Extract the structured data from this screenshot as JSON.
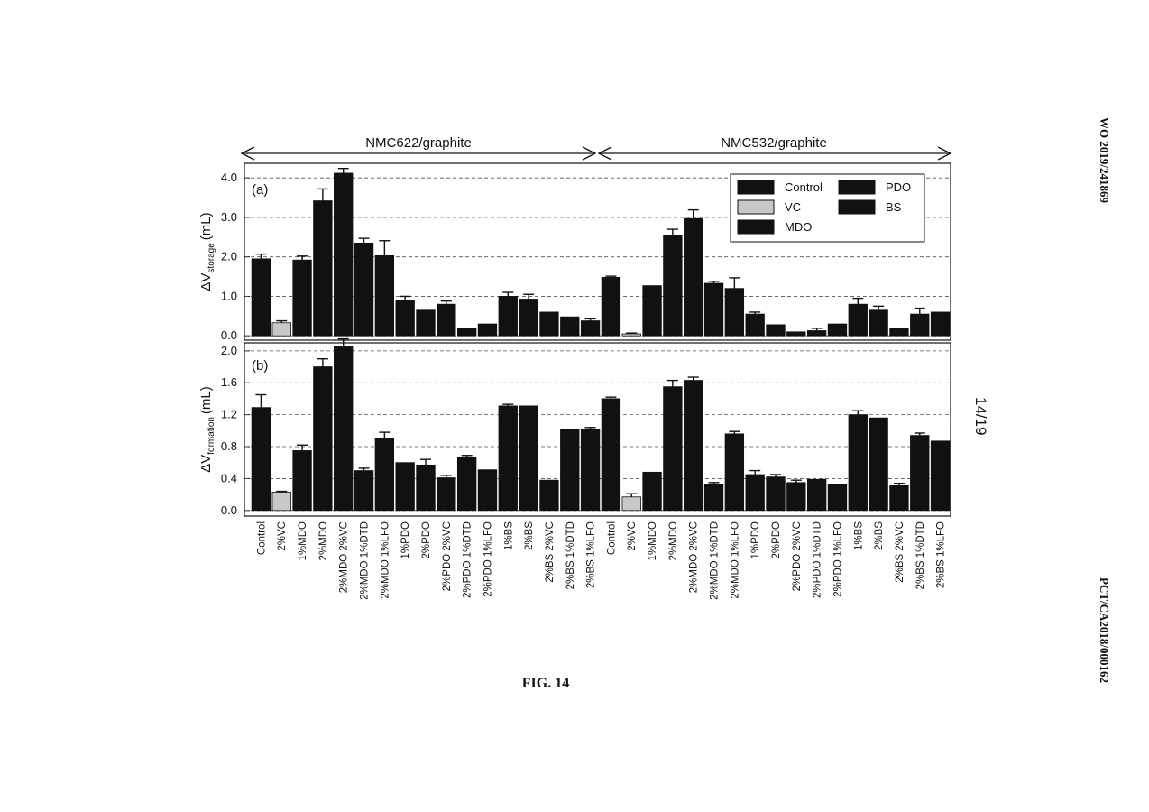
{
  "page": {
    "publication": "WO 2019/241869",
    "figure": "FIG. 14",
    "sheet": "14/19",
    "application": "PCT/CA2018/000162"
  },
  "groups": [
    "NMC622/graphite",
    "NMC532/graphite"
  ],
  "chart_data": [
    {
      "type": "bar",
      "label": "(a)",
      "y_label": {
        "main": "ΔV",
        "sub": "storage",
        "unit": "(mL)"
      },
      "values": [
        1.95,
        0.33,
        1.92,
        3.42,
        4.12,
        2.35,
        2.03,
        0.9,
        0.65,
        0.8,
        0.18,
        0.3,
        1.0,
        0.93,
        0.6,
        0.48,
        0.38,
        1.48,
        0.05,
        1.27,
        2.55,
        2.97,
        1.33,
        1.2,
        0.55,
        0.28,
        0.1,
        0.13,
        0.3,
        0.8,
        0.65,
        0.2,
        0.55,
        0.6
      ],
      "errors": [
        0.12,
        0.05,
        0.1,
        0.3,
        0.12,
        0.12,
        0.38,
        0.1,
        null,
        0.08,
        null,
        null,
        0.1,
        0.12,
        null,
        null,
        0.05,
        0.03,
        0.02,
        null,
        0.15,
        0.22,
        0.05,
        0.27,
        0.05,
        null,
        null,
        0.06,
        null,
        0.15,
        0.1,
        null,
        0.15,
        null
      ],
      "colors": [
        "#111",
        "#c8c8c8",
        "#111",
        "#111",
        "#111",
        "#111",
        "#111",
        "#111",
        "#111",
        "#111",
        "#111",
        "#111",
        "#111",
        "#111",
        "#111",
        "#111",
        "#111",
        "#111",
        "#c8c8c8",
        "#111",
        "#111",
        "#111",
        "#111",
        "#111",
        "#111",
        "#111",
        "#111",
        "#111",
        "#111",
        "#111",
        "#111",
        "#111",
        "#111",
        "#111"
      ],
      "ylim": [
        -0.11,
        4.37
      ],
      "yticks": [
        {
          "value": 0,
          "label": "0.0"
        },
        {
          "value": 1,
          "label": "1.0"
        },
        {
          "value": 2,
          "label": "2.0"
        },
        {
          "value": 3,
          "label": "3.0"
        },
        {
          "value": 4,
          "label": "4.0"
        }
      ],
      "grid": true,
      "legend": [
        {
          "name": "Control",
          "color": "#111"
        },
        {
          "name": "VC",
          "color": "#c8c8c8"
        },
        {
          "name": "MDO",
          "color": "#111"
        },
        {
          "name": "PDO",
          "color": "#111"
        },
        {
          "name": "BS",
          "color": "#111"
        }
      ]
    },
    {
      "type": "bar",
      "label": "(b)",
      "y_label": {
        "main": "ΔV",
        "sub": "formation",
        "unit": "(mL)"
      },
      "categories": [
        "Control",
        "2%VC",
        "1%MDO",
        "2%MDO",
        "2%MDO 2%VC",
        "2%MDO 1%DTD",
        "2%MDO 1%LFO",
        "1%PDO",
        "2%PDO",
        "2%PDO 2%VC",
        "2%PDO 1%DTD",
        "2%PDO 1%LFO",
        "1%BS",
        "2%BS",
        "2%BS 2%VC",
        "2%BS 1%DTD",
        "2%BS 1%LFO",
        "Control",
        "2%VC",
        "1%MDO",
        "2%MDO",
        "2%MDO 2%VC",
        "2%MDO 1%DTD",
        "2%MDO 1%LFO",
        "1%PDO",
        "2%PDO",
        "2%PDO 2%VC",
        "2%PDO 1%DTD",
        "2%PDO 1%LFO",
        "1%BS",
        "2%BS",
        "2%BS 2%VC",
        "2%BS 1%DTD",
        "2%BS 1%LFO"
      ],
      "values": [
        1.29,
        0.23,
        0.75,
        1.8,
        2.05,
        0.5,
        0.9,
        0.6,
        0.57,
        0.41,
        0.67,
        0.51,
        1.31,
        1.31,
        0.38,
        1.02,
        1.02,
        1.4,
        0.17,
        0.48,
        1.55,
        1.63,
        0.33,
        0.96,
        0.45,
        0.42,
        0.35,
        0.39,
        0.33,
        1.2,
        1.16,
        0.31,
        0.94,
        0.87
      ],
      "errors": [
        0.16,
        0.01,
        0.07,
        0.1,
        0.1,
        0.03,
        0.08,
        null,
        0.07,
        0.03,
        0.02,
        null,
        0.02,
        null,
        null,
        null,
        0.02,
        0.02,
        0.04,
        null,
        0.08,
        0.04,
        0.02,
        0.03,
        0.05,
        0.03,
        0.03,
        null,
        null,
        0.05,
        null,
        0.03,
        0.03,
        null
      ],
      "colors": [
        "#111",
        "#c8c8c8",
        "#111",
        "#111",
        "#111",
        "#111",
        "#111",
        "#111",
        "#111",
        "#111",
        "#111",
        "#111",
        "#111",
        "#111",
        "#111",
        "#111",
        "#111",
        "#111",
        "#c8c8c8",
        "#111",
        "#111",
        "#111",
        "#111",
        "#111",
        "#111",
        "#111",
        "#111",
        "#111",
        "#111",
        "#111",
        "#111",
        "#111",
        "#111",
        "#111"
      ],
      "ylim": [
        -0.07,
        2.1
      ],
      "yticks": [
        {
          "value": 0,
          "label": "0.0"
        },
        {
          "value": 0.4,
          "label": "0.4"
        },
        {
          "value": 0.8,
          "label": "0.8"
        },
        {
          "value": 1.2,
          "label": "1.2"
        },
        {
          "value": 1.6,
          "label": "1.6"
        },
        {
          "value": 2,
          "label": "2.0"
        }
      ],
      "grid": true
    }
  ]
}
